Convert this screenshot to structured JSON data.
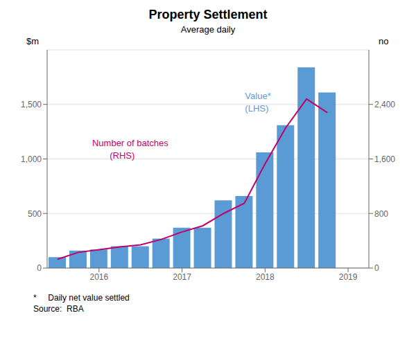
{
  "chart_data": {
    "type": "bar",
    "title": "Property Settlement",
    "subtitle": "Average daily",
    "ylabel": "$m",
    "y2label": "no",
    "x": [
      2015.5,
      2015.75,
      2016.0,
      2016.25,
      2016.5,
      2016.75,
      2017.0,
      2017.25,
      2017.5,
      2017.75,
      2018.0,
      2018.25,
      2018.5,
      2018.75
    ],
    "series": [
      {
        "type": "bar",
        "color": "#5B9BD5",
        "values": [
          100,
          160,
          170,
          200,
          200,
          270,
          370,
          370,
          620,
          660,
          1060,
          1310,
          1840,
          1610
        ]
      },
      {
        "type": "line",
        "color": "#C0006A",
        "axis": "y2",
        "values": [
          130,
          230,
          270,
          310,
          340,
          420,
          530,
          620,
          800,
          950,
          1530,
          2060,
          2480,
          2280
        ]
      }
    ],
    "xlim": [
      2015.375,
      2019.25
    ],
    "xticks": [
      2016,
      2017,
      2018,
      2019
    ],
    "ylim": [
      0,
      2000
    ],
    "yticks": [
      0,
      500,
      {
        "value": 1000,
        "label": "1,000"
      },
      {
        "value": 1500,
        "label": "1,500"
      }
    ],
    "y2lim": [
      0,
      3200
    ],
    "y2ticks": [
      0,
      800,
      {
        "value": 1600,
        "label": "1,600"
      },
      {
        "value": 2400,
        "label": "2,400"
      }
    ],
    "grid": true,
    "annotations": [
      {
        "text": "Value*\n(LHS)",
        "color": "#5B9BD5"
      },
      {
        "text": "Number of batches\n       (RHS)",
        "color": "#C0006A"
      }
    ],
    "footnotes": [
      "*     Daily net value settled",
      "Source:  RBA"
    ]
  }
}
